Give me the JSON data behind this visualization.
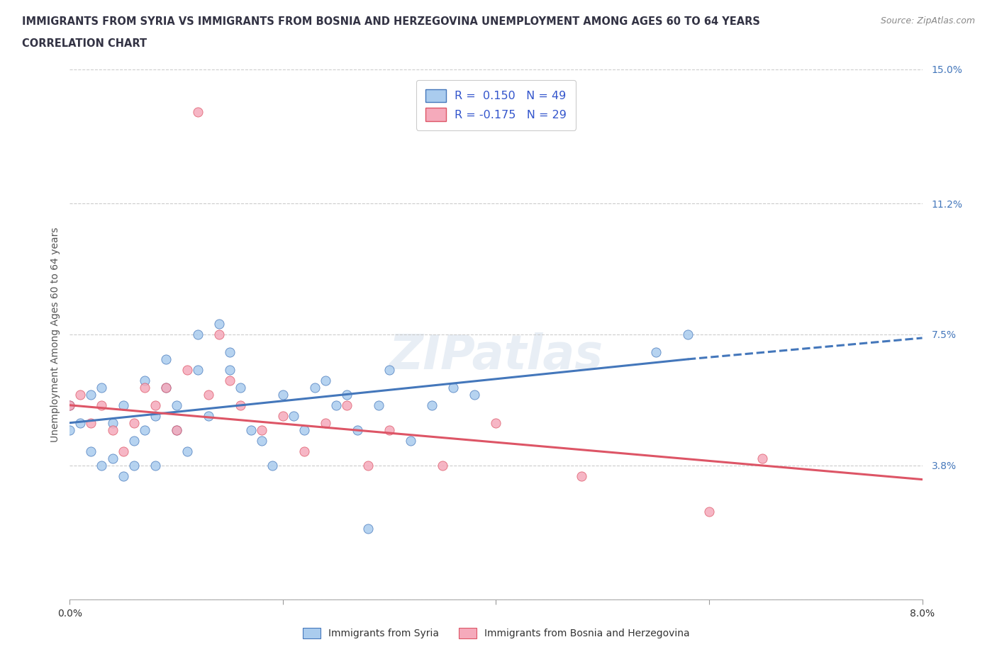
{
  "title_line1": "IMMIGRANTS FROM SYRIA VS IMMIGRANTS FROM BOSNIA AND HERZEGOVINA UNEMPLOYMENT AMONG AGES 60 TO 64 YEARS",
  "title_line2": "CORRELATION CHART",
  "source_text": "Source: ZipAtlas.com",
  "ylabel": "Unemployment Among Ages 60 to 64 years",
  "legend_label1": "Immigrants from Syria",
  "legend_label2": "Immigrants from Bosnia and Herzegovina",
  "R1": 0.15,
  "N1": 49,
  "R2": -0.175,
  "N2": 29,
  "color1": "#aaccee",
  "color2": "#f5aabb",
  "trend_color1": "#4477bb",
  "trend_color2": "#dd5566",
  "xlim": [
    0.0,
    0.08
  ],
  "ylim": [
    0.0,
    0.15
  ],
  "ytick_positions": [
    0.0,
    0.038,
    0.075,
    0.112,
    0.15
  ],
  "ytick_labels": [
    "",
    "3.8%",
    "7.5%",
    "11.2%",
    "15.0%"
  ],
  "watermark": "ZIPatlas",
  "syria_x": [
    0.0,
    0.0,
    0.001,
    0.002,
    0.002,
    0.003,
    0.003,
    0.004,
    0.004,
    0.005,
    0.005,
    0.006,
    0.006,
    0.007,
    0.007,
    0.008,
    0.008,
    0.009,
    0.009,
    0.01,
    0.01,
    0.011,
    0.012,
    0.012,
    0.013,
    0.014,
    0.015,
    0.015,
    0.016,
    0.017,
    0.018,
    0.019,
    0.02,
    0.021,
    0.022,
    0.023,
    0.024,
    0.025,
    0.026,
    0.027,
    0.028,
    0.029,
    0.03,
    0.032,
    0.034,
    0.036,
    0.038,
    0.055,
    0.058
  ],
  "syria_y": [
    0.048,
    0.055,
    0.05,
    0.042,
    0.058,
    0.038,
    0.06,
    0.04,
    0.05,
    0.035,
    0.055,
    0.045,
    0.038,
    0.048,
    0.062,
    0.052,
    0.038,
    0.068,
    0.06,
    0.055,
    0.048,
    0.042,
    0.075,
    0.065,
    0.052,
    0.078,
    0.07,
    0.065,
    0.06,
    0.048,
    0.045,
    0.038,
    0.058,
    0.052,
    0.048,
    0.06,
    0.062,
    0.055,
    0.058,
    0.048,
    0.02,
    0.055,
    0.065,
    0.045,
    0.055,
    0.06,
    0.058,
    0.07,
    0.075
  ],
  "bosnia_x": [
    0.0,
    0.001,
    0.002,
    0.003,
    0.004,
    0.005,
    0.006,
    0.007,
    0.008,
    0.009,
    0.01,
    0.011,
    0.012,
    0.013,
    0.014,
    0.015,
    0.016,
    0.018,
    0.02,
    0.022,
    0.024,
    0.026,
    0.028,
    0.03,
    0.035,
    0.04,
    0.048,
    0.06,
    0.065
  ],
  "bosnia_y": [
    0.055,
    0.058,
    0.05,
    0.055,
    0.048,
    0.042,
    0.05,
    0.06,
    0.055,
    0.06,
    0.048,
    0.065,
    0.138,
    0.058,
    0.075,
    0.062,
    0.055,
    0.048,
    0.052,
    0.042,
    0.05,
    0.055,
    0.038,
    0.048,
    0.038,
    0.05,
    0.035,
    0.025,
    0.04
  ],
  "trend1_x0": 0.0,
  "trend1_y0": 0.05,
  "trend1_x1": 0.058,
  "trend1_y1": 0.068,
  "trend1_dash_x0": 0.058,
  "trend1_dash_y0": 0.068,
  "trend1_dash_x1": 0.08,
  "trend1_dash_y1": 0.074,
  "trend2_x0": 0.0,
  "trend2_y0": 0.055,
  "trend2_x1": 0.08,
  "trend2_y1": 0.034
}
